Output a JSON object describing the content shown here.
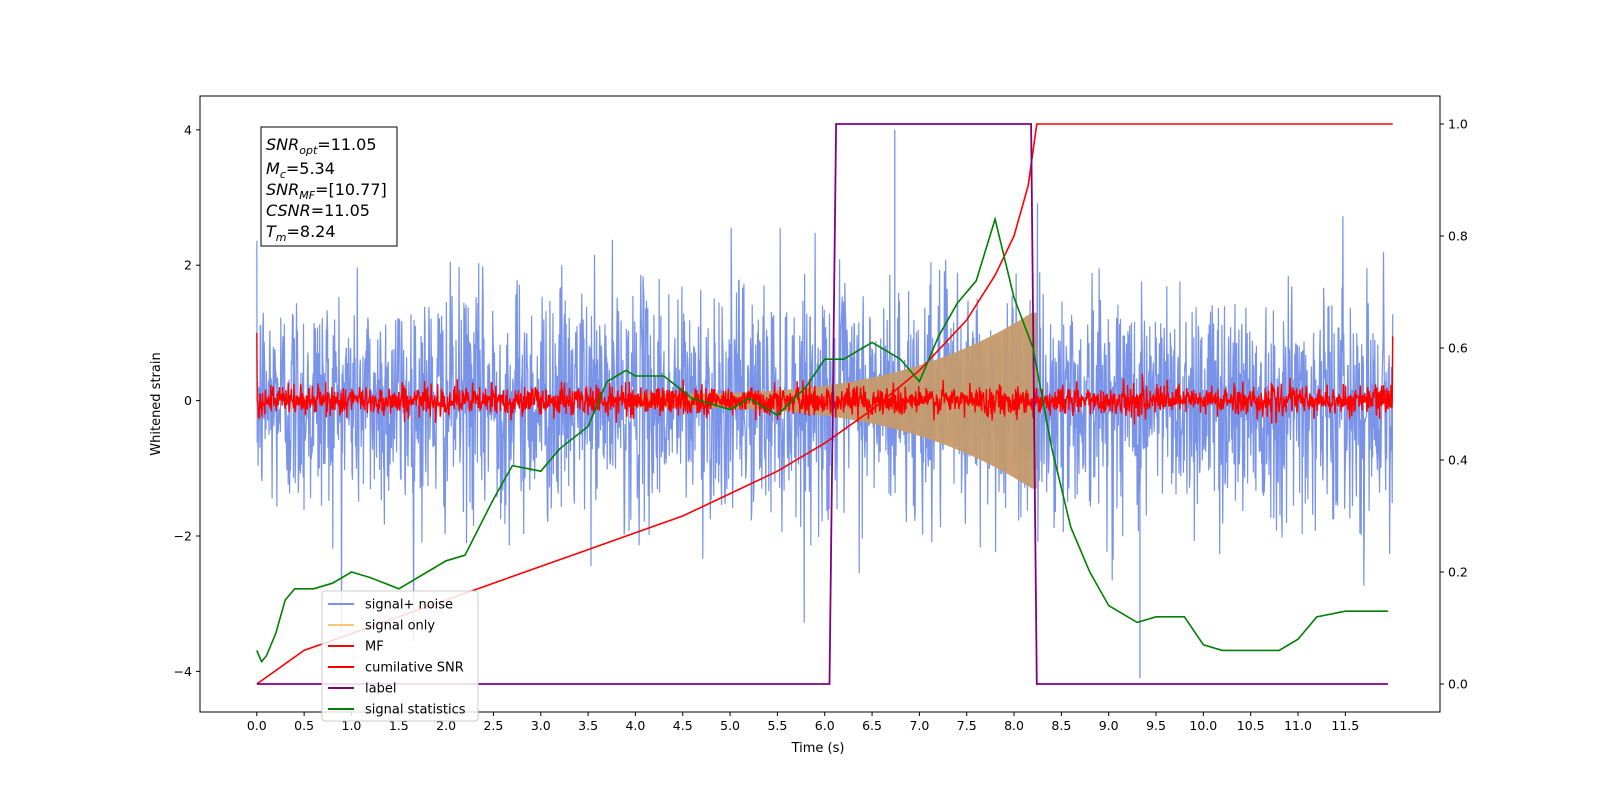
{
  "chart_data": {
    "type": "line",
    "title": "",
    "xlabel": "Time (s)",
    "ylabel": "Whitened strain",
    "xlim": [
      -0.6,
      12.5
    ],
    "ylim": [
      -4.6,
      4.5
    ],
    "ylim_right": [
      -0.05,
      1.05
    ],
    "x_ticks": [
      "0.0",
      "0.5",
      "1.0",
      "1.5",
      "2.0",
      "2.5",
      "3.0",
      "3.5",
      "4.0",
      "4.5",
      "5.0",
      "5.5",
      "6.0",
      "6.5",
      "7.0",
      "7.5",
      "8.0",
      "8.5",
      "9.0",
      "9.5",
      "10.0",
      "10.5",
      "11.0",
      "11.5"
    ],
    "y_ticks": [
      "−4",
      "−2",
      "0",
      "2",
      "4"
    ],
    "y_ticks_right": [
      "0.0",
      "0.2",
      "0.4",
      "0.6",
      "0.8",
      "1.0"
    ],
    "grid": false,
    "legend_position": "lower-left",
    "legend": [
      "signal+ noise",
      "signal only",
      "MF",
      "cumilative SNR",
      "label",
      "signal statistics"
    ],
    "colors": {
      "signal_noise": "#7893e8",
      "signal_only": "#c49a6c",
      "mf": "#ff0000",
      "cum_snr": "#ff0000",
      "label": "#800080",
      "stats": "#008000"
    },
    "annotation": {
      "snr_opt": "=11.05",
      "mc": "=5.34",
      "snr_mf": "=[10.77]",
      "csnr": "=11.05",
      "tm": "=8.24"
    },
    "signal_noise": {
      "x_range": [
        0.0,
        12.0
      ],
      "envelope": 2.0,
      "max_spike": 4.0,
      "min_spike": -4.1
    },
    "signal_only": {
      "t_start": 4.0,
      "t_merger": 8.24,
      "peak_amplitude": 1.3
    },
    "mf": {
      "x_range": [
        0.0,
        12.0
      ],
      "amplitude": 0.22
    },
    "cumulative_snr": {
      "x": [
        0.0,
        0.5,
        1.0,
        1.5,
        2.0,
        2.5,
        3.0,
        3.5,
        4.0,
        4.5,
        5.0,
        5.5,
        6.0,
        6.5,
        7.0,
        7.5,
        7.8,
        8.0,
        8.15,
        8.24,
        12.0
      ],
      "y": [
        0.0,
        0.06,
        0.09,
        0.12,
        0.15,
        0.18,
        0.21,
        0.24,
        0.27,
        0.3,
        0.34,
        0.38,
        0.43,
        0.49,
        0.56,
        0.65,
        0.73,
        0.8,
        0.89,
        1.0,
        1.0
      ]
    },
    "label": {
      "x": [
        0.0,
        6.05,
        6.12,
        8.18,
        8.24,
        11.95
      ],
      "y": [
        0,
        0,
        1,
        1,
        0,
        0
      ]
    },
    "signal_statistics": {
      "x": [
        0.0,
        0.05,
        0.1,
        0.2,
        0.3,
        0.4,
        0.6,
        0.8,
        1.0,
        1.2,
        1.5,
        1.8,
        2.0,
        2.2,
        2.5,
        2.7,
        3.0,
        3.2,
        3.5,
        3.7,
        3.9,
        4.0,
        4.3,
        4.6,
        5.0,
        5.2,
        5.5,
        5.8,
        6.0,
        6.2,
        6.5,
        6.8,
        7.0,
        7.2,
        7.4,
        7.6,
        7.8,
        8.0,
        8.2,
        8.4,
        8.6,
        8.8,
        9.0,
        9.3,
        9.5,
        9.8,
        10.0,
        10.2,
        10.5,
        10.8,
        11.0,
        11.2,
        11.5,
        11.8,
        11.95
      ],
      "y": [
        0.06,
        0.04,
        0.05,
        0.09,
        0.15,
        0.17,
        0.17,
        0.18,
        0.2,
        0.19,
        0.17,
        0.2,
        0.22,
        0.23,
        0.33,
        0.39,
        0.38,
        0.42,
        0.46,
        0.54,
        0.56,
        0.55,
        0.55,
        0.51,
        0.49,
        0.51,
        0.48,
        0.53,
        0.58,
        0.58,
        0.61,
        0.58,
        0.54,
        0.62,
        0.68,
        0.72,
        0.83,
        0.69,
        0.6,
        0.42,
        0.28,
        0.2,
        0.14,
        0.11,
        0.12,
        0.12,
        0.07,
        0.06,
        0.06,
        0.06,
        0.08,
        0.12,
        0.13,
        0.13,
        0.13
      ]
    }
  }
}
